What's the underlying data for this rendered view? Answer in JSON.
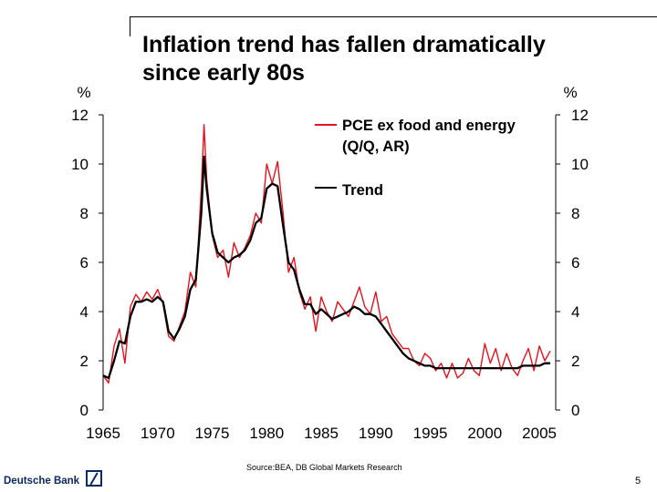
{
  "slide": {
    "title_line1": "Inflation trend has fallen dramatically",
    "title_line2": "since early 80s",
    "source": "Source:BEA, DB Global Markets Research",
    "brand": "Deutsche Bank",
    "page_number": "5"
  },
  "colors": {
    "series_pce": "#e8121c",
    "series_trend": "#000000",
    "axis": "#000000"
  },
  "chart_data": {
    "type": "line",
    "title": "Inflation trend has fallen dramatically since early 80s",
    "left_axis_unit": "%",
    "right_axis_unit": "%",
    "xlim": [
      1965,
      2006.5
    ],
    "ylim": [
      0,
      12
    ],
    "x_ticks": [
      "1965",
      "1970",
      "1975",
      "1980",
      "1985",
      "1990",
      "1995",
      "2000",
      "2005"
    ],
    "y_ticks": [
      "0",
      "2",
      "4",
      "6",
      "8",
      "10",
      "12"
    ],
    "legend": {
      "position": "top-right",
      "pce_label_line1": "PCE ex food and energy",
      "pce_label_line2": "(Q/Q, AR)",
      "trend_label": "Trend"
    },
    "series": [
      {
        "name": "PCE ex food and energy (Q/Q, AR)",
        "x": [
          1965,
          1965.5,
          1966,
          1966.5,
          1967,
          1967.5,
          1968,
          1968.5,
          1969,
          1969.5,
          1970,
          1970.5,
          1971,
          1971.5,
          1972,
          1972.5,
          1973,
          1973.5,
          1974,
          1974.25,
          1974.5,
          1975,
          1975.5,
          1976,
          1976.5,
          1977,
          1977.5,
          1978,
          1978.5,
          1979,
          1979.5,
          1980,
          1980.5,
          1981,
          1981.5,
          1982,
          1982.5,
          1983,
          1983.5,
          1984,
          1984.5,
          1985,
          1985.5,
          1986,
          1986.5,
          1987,
          1987.5,
          1988,
          1988.5,
          1989,
          1989.5,
          1990,
          1990.5,
          1991,
          1991.5,
          1992,
          1992.5,
          1993,
          1993.5,
          1994,
          1994.5,
          1995,
          1995.5,
          1996,
          1996.5,
          1997,
          1997.5,
          1998,
          1998.5,
          1999,
          1999.5,
          2000,
          2000.5,
          2001,
          2001.5,
          2002,
          2002.5,
          2003,
          2003.5,
          2004,
          2004.5,
          2005,
          2005.5,
          2006
        ],
        "values": [
          1.4,
          1.1,
          2.6,
          3.3,
          1.9,
          4.2,
          4.7,
          4.4,
          4.8,
          4.5,
          4.9,
          4.3,
          3.0,
          2.8,
          3.4,
          4.0,
          5.6,
          5.0,
          9.0,
          11.6,
          9.4,
          7.1,
          6.2,
          6.5,
          5.4,
          6.8,
          6.2,
          6.6,
          7.1,
          8.0,
          7.6,
          10.0,
          9.2,
          10.1,
          8.0,
          5.6,
          6.2,
          4.8,
          4.1,
          4.6,
          3.2,
          4.6,
          4.0,
          3.6,
          4.4,
          4.1,
          3.8,
          4.4,
          5.0,
          4.2,
          3.9,
          4.8,
          3.6,
          3.8,
          3.1,
          2.8,
          2.5,
          2.5,
          2.0,
          1.8,
          2.3,
          2.1,
          1.6,
          1.9,
          1.3,
          1.9,
          1.3,
          1.5,
          2.1,
          1.6,
          1.4,
          2.7,
          1.9,
          2.5,
          1.6,
          2.3,
          1.7,
          1.4,
          2.0,
          2.5,
          1.6,
          2.6,
          2.0,
          2.4
        ]
      },
      {
        "name": "Trend",
        "x": [
          1965,
          1965.5,
          1966,
          1966.5,
          1967,
          1967.5,
          1968,
          1968.5,
          1969,
          1969.5,
          1970,
          1970.5,
          1971,
          1971.5,
          1972,
          1972.5,
          1973,
          1973.5,
          1974,
          1974.25,
          1974.5,
          1975,
          1975.5,
          1976,
          1976.5,
          1977,
          1977.5,
          1978,
          1978.5,
          1979,
          1979.5,
          1980,
          1980.5,
          1981,
          1981.5,
          1982,
          1982.5,
          1983,
          1983.5,
          1984,
          1984.5,
          1985,
          1985.5,
          1986,
          1986.5,
          1987,
          1987.5,
          1988,
          1988.5,
          1989,
          1989.5,
          1990,
          1990.5,
          1991,
          1991.5,
          1992,
          1992.5,
          1993,
          1993.5,
          1994,
          1994.5,
          1995,
          1995.5,
          1996,
          1996.5,
          1997,
          1997.5,
          1998,
          1998.5,
          1999,
          1999.5,
          2000,
          2000.5,
          2001,
          2001.5,
          2002,
          2002.5,
          2003,
          2003.5,
          2004,
          2004.5,
          2005,
          2005.5,
          2006
        ],
        "values": [
          1.4,
          1.3,
          2.0,
          2.8,
          2.7,
          3.8,
          4.4,
          4.4,
          4.5,
          4.4,
          4.6,
          4.4,
          3.2,
          2.9,
          3.3,
          3.8,
          4.9,
          5.3,
          8.0,
          10.3,
          9.0,
          7.2,
          6.4,
          6.2,
          6.0,
          6.2,
          6.3,
          6.5,
          6.9,
          7.6,
          7.8,
          9.0,
          9.2,
          9.1,
          7.5,
          6.0,
          5.7,
          4.9,
          4.3,
          4.3,
          3.9,
          4.1,
          3.9,
          3.7,
          3.8,
          3.9,
          4.0,
          4.2,
          4.1,
          3.9,
          3.9,
          3.8,
          3.5,
          3.2,
          2.9,
          2.6,
          2.3,
          2.1,
          2.0,
          1.9,
          1.8,
          1.8,
          1.7,
          1.7,
          1.7,
          1.7,
          1.7,
          1.7,
          1.7,
          1.7,
          1.7,
          1.7,
          1.7,
          1.7,
          1.7,
          1.7,
          1.7,
          1.7,
          1.8,
          1.8,
          1.8,
          1.8,
          1.9,
          1.9
        ]
      }
    ]
  }
}
